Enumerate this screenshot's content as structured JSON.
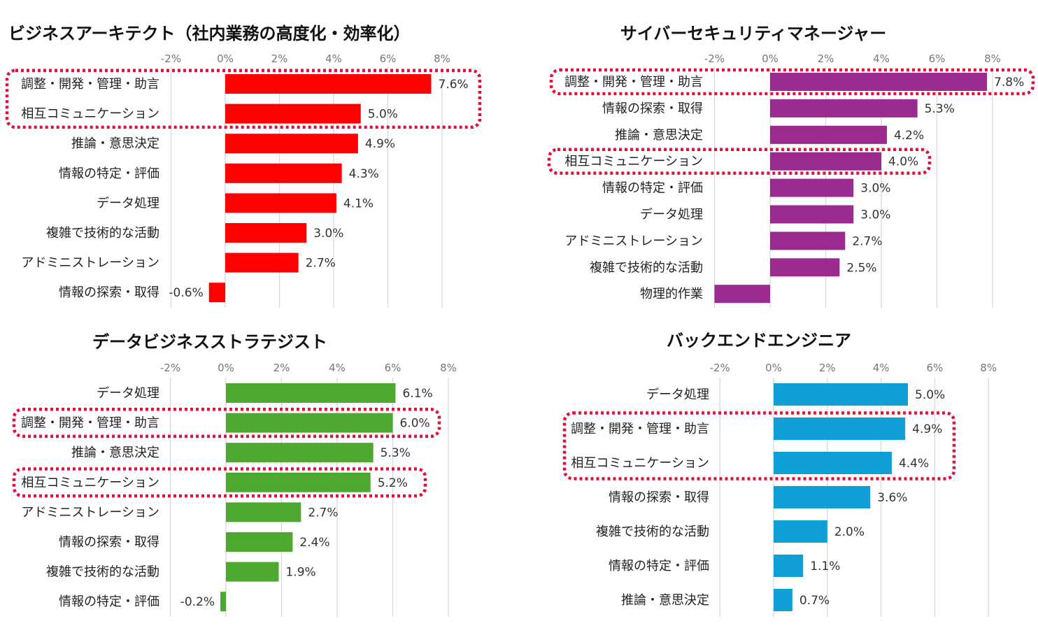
{
  "chart_data": [
    {
      "type": "bar",
      "orientation": "horizontal",
      "title": "ビジネスアーキテクト（社内業務の高度化・効率化）",
      "xticks": [
        "-2%",
        "0%",
        "2%",
        "4%",
        "6%",
        "8%"
      ],
      "xlim": [
        -2,
        8
      ],
      "color": "#ff0000",
      "categories": [
        "調整・開発・管理・助言",
        "相互コミュニケーション",
        "推論・意思決定",
        "情報の特定・評価",
        "データ処理",
        "複雑で技術的な活動",
        "アドミニストレーション",
        "情報の探索・取得"
      ],
      "values": [
        7.6,
        5.0,
        4.9,
        4.3,
        4.1,
        3.0,
        2.7,
        -0.6
      ],
      "labels": [
        "7.6%",
        "5.0%",
        "4.9%",
        "4.3%",
        "4.1%",
        "3.0%",
        "2.7%",
        "-0.6%"
      ],
      "highlight_groups": [
        [
          "調整・開発・管理・助言",
          "相互コミュニケーション"
        ]
      ],
      "grid": true
    },
    {
      "type": "bar",
      "orientation": "horizontal",
      "title": "サイバーセキュリティマネージャー",
      "xticks": [
        "-2%",
        "0%",
        "2%",
        "4%",
        "6%",
        "8%"
      ],
      "xlim": [
        -2,
        8
      ],
      "color": "#9b2a8f",
      "categories": [
        "調整・開発・管理・助言",
        "情報の探索・取得",
        "推論・意思決定",
        "相互コミュニケーション",
        "情報の特定・評価",
        "データ処理",
        "アドミニストレーション",
        "複雑で技術的な活動",
        "物理的作業"
      ],
      "values": [
        7.8,
        5.3,
        4.2,
        4.0,
        3.0,
        3.0,
        2.7,
        2.5,
        -2.0
      ],
      "labels": [
        "7.8%",
        "5.3%",
        "4.2%",
        "4.0%",
        "3.0%",
        "3.0%",
        "2.7%",
        "2.5%",
        null
      ],
      "highlight_groups": [
        [
          "調整・開発・管理・助言"
        ],
        [
          "相互コミュニケーション"
        ]
      ],
      "grid": true
    },
    {
      "type": "bar",
      "orientation": "horizontal",
      "title": "データビジネスストラテジスト",
      "xticks": [
        "-2%",
        "0%",
        "2%",
        "4%",
        "6%",
        "8%"
      ],
      "xlim": [
        -2,
        8
      ],
      "color": "#4ea72e",
      "categories": [
        "データ処理",
        "調整・開発・管理・助言",
        "推論・意思決定",
        "相互コミュニケーション",
        "アドミニストレーション",
        "情報の探索・取得",
        "複雑で技術的な活動",
        "情報の特定・評価"
      ],
      "values": [
        6.1,
        6.0,
        5.3,
        5.2,
        2.7,
        2.4,
        1.9,
        -0.2
      ],
      "labels": [
        "6.1%",
        "6.0%",
        "5.3%",
        "5.2%",
        "2.7%",
        "2.4%",
        "1.9%",
        "-0.2%"
      ],
      "highlight_groups": [
        [
          "調整・開発・管理・助言"
        ],
        [
          "相互コミュニケーション"
        ]
      ],
      "grid": true
    },
    {
      "type": "bar",
      "orientation": "horizontal",
      "title": "バックエンドエンジニア",
      "xticks": [
        "-2%",
        "0%",
        "2%",
        "4%",
        "6%",
        "8%"
      ],
      "xlim": [
        -2,
        8
      ],
      "color": "#0f9ed5",
      "categories": [
        "データ処理",
        "調整・開発・管理・助言",
        "相互コミュニケーション",
        "情報の探索・取得",
        "複雑で技術的な活動",
        "情報の特定・評価",
        "推論・意思決定"
      ],
      "values": [
        5.0,
        4.9,
        4.4,
        3.6,
        2.0,
        1.1,
        0.7
      ],
      "labels": [
        "5.0%",
        "4.9%",
        "4.4%",
        "3.6%",
        "2.0%",
        "1.1%",
        "0.7%"
      ],
      "highlight_groups": [
        [
          "調整・開発・管理・助言",
          "相互コミュニケーション"
        ]
      ],
      "grid": true
    }
  ],
  "highlight_color": "#e0103a"
}
